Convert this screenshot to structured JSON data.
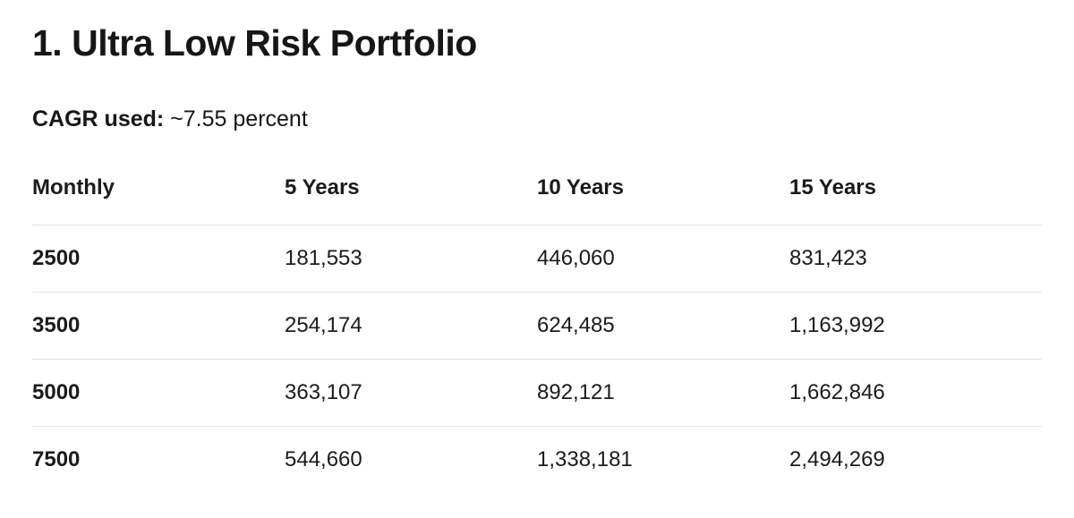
{
  "page": {
    "title": "1. Ultra Low Risk Portfolio",
    "cagr": {
      "label": "CAGR used:",
      "value": "~7.55 percent"
    }
  },
  "table": {
    "columns": [
      "Monthly",
      "5 Years",
      "10 Years",
      "15 Years"
    ],
    "rows": [
      [
        "2500",
        "181,553",
        "446,060",
        "831,423"
      ],
      [
        "3500",
        "254,174",
        "624,485",
        "1,163,992"
      ],
      [
        "5000",
        "363,107",
        "892,121",
        "1,662,846"
      ],
      [
        "7500",
        "544,660",
        "1,338,181",
        "2,494,269"
      ]
    ]
  },
  "colors": {
    "background": "#ffffff",
    "text": "#1b1b1d",
    "divider": "#e4e4e4"
  },
  "chart_data": {
    "type": "table",
    "title": "1. Ultra Low Risk Portfolio",
    "cagr_used_percent": 7.55,
    "columns": [
      "Monthly",
      "5 Years",
      "10 Years",
      "15 Years"
    ],
    "rows": [
      [
        2500,
        181553,
        446060,
        831423
      ],
      [
        3500,
        254174,
        624485,
        1163992
      ],
      [
        5000,
        363107,
        892121,
        1662846
      ],
      [
        7500,
        544660,
        1338181,
        2494269
      ]
    ]
  }
}
